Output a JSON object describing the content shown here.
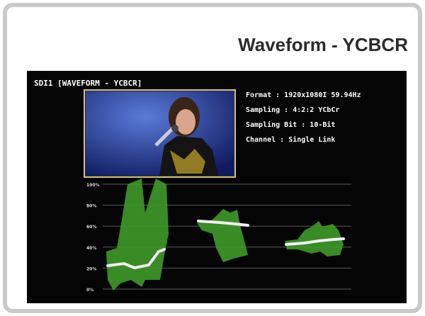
{
  "header": {
    "title": "Waveform - YCBCR"
  },
  "screen": {
    "title": "SDI1 [WAVEFORM - YCBCR]",
    "info": [
      "Format : 1920x1080I  59.94Hz",
      "Sampling : 4:2:2 YCbCr",
      "Sampling Bit : 10-Bit",
      "Channel : Single Link"
    ],
    "scale": [
      "100%",
      "80%",
      "60%",
      "40%",
      "20%",
      "0%"
    ]
  }
}
